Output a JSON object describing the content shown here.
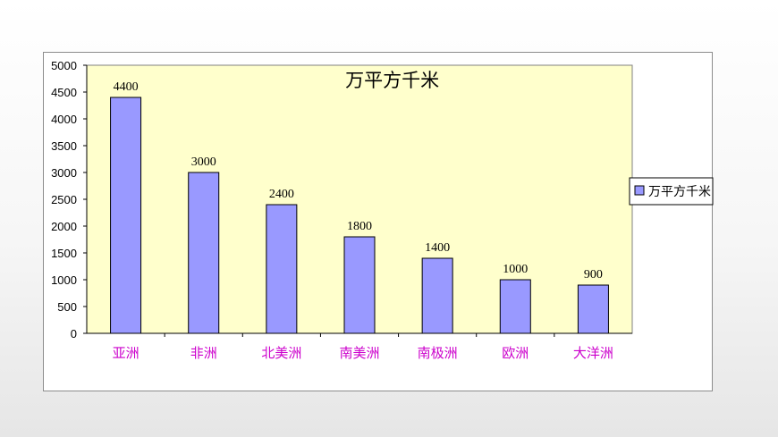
{
  "chart_data": {
    "type": "bar",
    "title": "万平方千米",
    "categories": [
      "亚洲",
      "非洲",
      "北美洲",
      "南美洲",
      "南极洲",
      "欧洲",
      "大洋洲"
    ],
    "series": [
      {
        "name": "万平方千米",
        "values": [
          4400,
          3000,
          2400,
          1800,
          1400,
          1000,
          900
        ]
      }
    ],
    "ylim": [
      0,
      5000
    ],
    "yticks": [
      0,
      500,
      1000,
      1500,
      2000,
      2500,
      3000,
      3500,
      4000,
      4500,
      5000
    ],
    "data_labels": [
      "4400",
      "3000",
      "2400",
      "1800",
      "1400",
      "1000",
      "900"
    ],
    "grid": false,
    "legend_position": "right",
    "colors": {
      "bar_fill": "#9999ff",
      "bar_stroke": "#000000",
      "plot_background": "#ffffcc",
      "category_label": "#cc00cc"
    }
  }
}
